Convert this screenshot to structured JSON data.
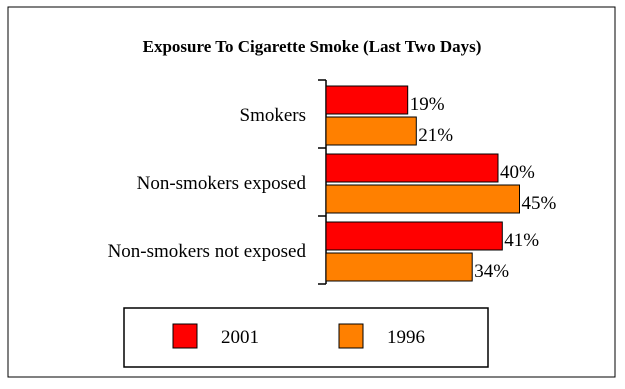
{
  "chart_data": {
    "type": "bar",
    "orientation": "horizontal",
    "title": "Exposure To Cigarette Smoke (Last Two Days)",
    "xlabel": "",
    "ylabel": "",
    "categories": [
      "Smokers",
      "Non-smokers exposed",
      "Non-smokers not exposed"
    ],
    "series": [
      {
        "name": "2001",
        "color": "#ff0000",
        "values": [
          19,
          40,
          41
        ],
        "labels": [
          "19%",
          "40%",
          "41%"
        ]
      },
      {
        "name": "1996",
        "color": "#ff8000",
        "values": [
          21,
          45,
          34
        ],
        "labels": [
          "21%",
          "45%",
          "34%"
        ]
      }
    ],
    "xlim": [
      0,
      50
    ],
    "grid": false,
    "legend": "bottom"
  }
}
